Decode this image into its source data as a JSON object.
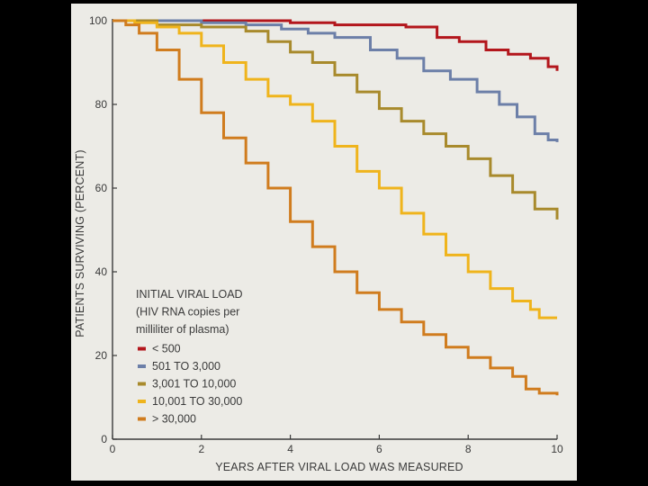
{
  "chart_data": {
    "type": "line",
    "title": "",
    "xlabel": "YEARS AFTER VIRAL LOAD WAS MEASURED",
    "ylabel": "PATIENTS SURVIVING (PERCENT)",
    "xlim": [
      0,
      10
    ],
    "ylim": [
      0,
      100
    ],
    "x_ticks": [
      "0",
      "2",
      "4",
      "6",
      "8",
      "10"
    ],
    "y_ticks": [
      "0",
      "20",
      "40",
      "60",
      "80",
      "100"
    ],
    "grid": false,
    "legend_title": [
      "INITIAL VIRAL LOAD",
      "(HIV RNA copies per",
      "milliliter of plasma)"
    ],
    "legend_position": "lower-left",
    "series": [
      {
        "name": "< 500",
        "color": "#b3161c",
        "points": [
          [
            0,
            100
          ],
          [
            1,
            100
          ],
          [
            2,
            100
          ],
          [
            3,
            100
          ],
          [
            4,
            99.5
          ],
          [
            5,
            99
          ],
          [
            6,
            99
          ],
          [
            6.6,
            98.5
          ],
          [
            7.3,
            96
          ],
          [
            7.8,
            95
          ],
          [
            8.4,
            93
          ],
          [
            8.9,
            92
          ],
          [
            9.4,
            91
          ],
          [
            9.8,
            89
          ],
          [
            10,
            88
          ]
        ]
      },
      {
        "name": "501 TO 3,000",
        "color": "#6c7fa8",
        "points": [
          [
            0,
            100
          ],
          [
            1,
            100
          ],
          [
            2,
            99.5
          ],
          [
            3,
            99
          ],
          [
            3.8,
            98
          ],
          [
            4.4,
            97
          ],
          [
            5,
            96
          ],
          [
            5.8,
            93
          ],
          [
            6.4,
            91
          ],
          [
            7,
            88
          ],
          [
            7.6,
            86
          ],
          [
            8.2,
            83
          ],
          [
            8.7,
            80
          ],
          [
            9.1,
            77
          ],
          [
            9.5,
            73
          ],
          [
            9.8,
            71.5
          ],
          [
            10,
            71
          ]
        ]
      },
      {
        "name": "3,001 TO 10,000",
        "color": "#a88a2c",
        "points": [
          [
            0,
            100
          ],
          [
            1,
            99
          ],
          [
            2,
            98.5
          ],
          [
            3,
            97.5
          ],
          [
            3.5,
            95
          ],
          [
            4,
            92.5
          ],
          [
            4.5,
            90
          ],
          [
            5,
            87
          ],
          [
            5.5,
            83
          ],
          [
            6,
            79
          ],
          [
            6.5,
            76
          ],
          [
            7,
            73
          ],
          [
            7.5,
            70
          ],
          [
            8,
            67
          ],
          [
            8.5,
            63
          ],
          [
            9,
            59
          ],
          [
            9.5,
            55
          ],
          [
            10,
            52.5
          ]
        ]
      },
      {
        "name": "10,001 TO 30,000",
        "color": "#efb41c",
        "points": [
          [
            0,
            100
          ],
          [
            0.5,
            99.5
          ],
          [
            1,
            98.5
          ],
          [
            1.5,
            97
          ],
          [
            2,
            94
          ],
          [
            2.5,
            90
          ],
          [
            3,
            86
          ],
          [
            3.5,
            82
          ],
          [
            4,
            80
          ],
          [
            4.5,
            76
          ],
          [
            5,
            70
          ],
          [
            5.5,
            64
          ],
          [
            6,
            60
          ],
          [
            6.5,
            54
          ],
          [
            7,
            49
          ],
          [
            7.5,
            44
          ],
          [
            8,
            40
          ],
          [
            8.5,
            36
          ],
          [
            9,
            33
          ],
          [
            9.4,
            31
          ],
          [
            9.6,
            29
          ],
          [
            10,
            29
          ]
        ]
      },
      {
        "name": "> 30,000",
        "color": "#d07c1e",
        "points": [
          [
            0,
            100
          ],
          [
            0.3,
            99
          ],
          [
            0.6,
            97
          ],
          [
            1,
            93
          ],
          [
            1.5,
            86
          ],
          [
            2,
            78
          ],
          [
            2.5,
            72
          ],
          [
            3,
            66
          ],
          [
            3.5,
            60
          ],
          [
            4,
            52
          ],
          [
            4.5,
            46
          ],
          [
            5,
            40
          ],
          [
            5.5,
            35
          ],
          [
            6,
            31
          ],
          [
            6.5,
            28
          ],
          [
            7,
            25
          ],
          [
            7.5,
            22
          ],
          [
            8,
            19.5
          ],
          [
            8.5,
            17
          ],
          [
            9,
            15
          ],
          [
            9.3,
            12
          ],
          [
            9.6,
            11
          ],
          [
            10,
            10.5
          ]
        ]
      }
    ]
  }
}
